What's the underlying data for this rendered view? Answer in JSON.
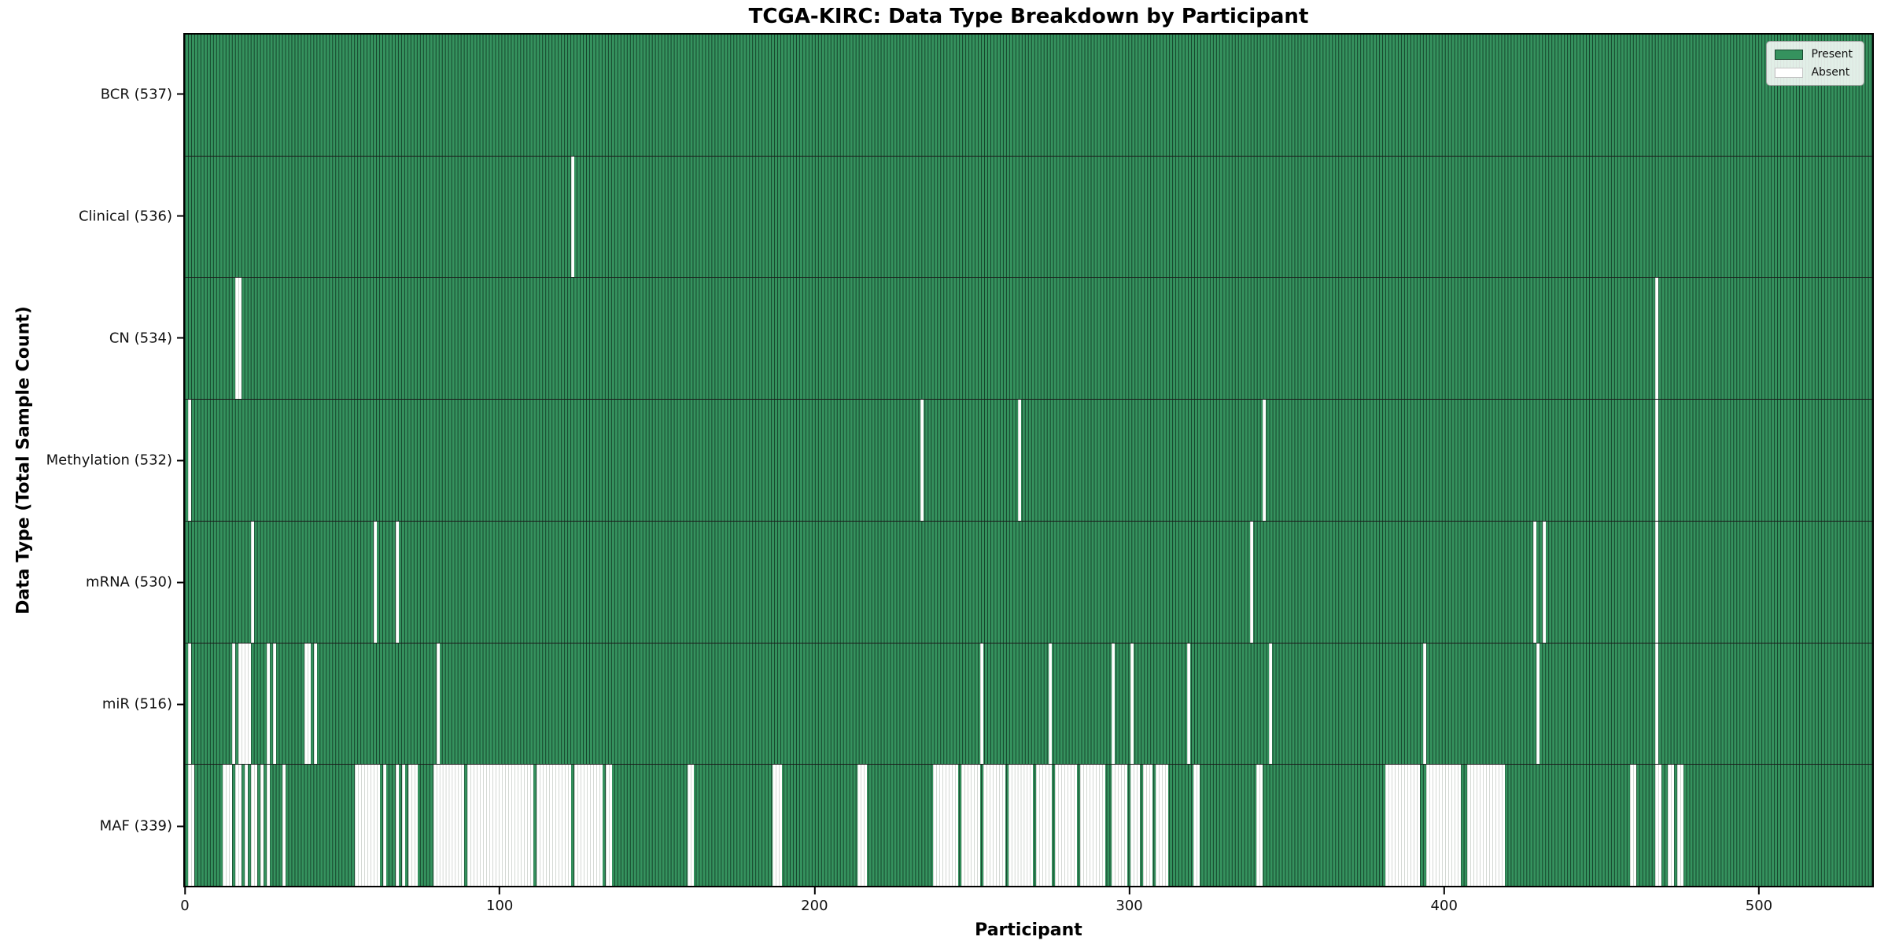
{
  "colors": {
    "present": "#35925e",
    "present_edge": "#16452c",
    "absent": "#ffffff",
    "absent_edge": "#d4d8d4",
    "divider": "#1a1a1a"
  },
  "chart_data": {
    "type": "heatmap",
    "title": "TCGA-KIRC: Data Type Breakdown by Participant",
    "xlabel": "Participant",
    "ylabel": "Data Type (Total Sample Count)",
    "x_ticks": [
      0,
      100,
      200,
      300,
      400,
      500
    ],
    "x_range": [
      0,
      537
    ],
    "n_participants": 537,
    "grid": false,
    "legend_position": "upper right",
    "legend": [
      {
        "label": "Present",
        "color": "#35925e"
      },
      {
        "label": "Absent",
        "color": "#ffffff"
      }
    ],
    "rows": [
      {
        "label": "BCR (537)",
        "data_type": "BCR",
        "present_count": 537,
        "absent_ranges": []
      },
      {
        "label": "Clinical (536)",
        "data_type": "Clinical",
        "present_count": 536,
        "absent_ranges": [
          [
            123,
            123
          ]
        ]
      },
      {
        "label": "CN (534)",
        "data_type": "CN",
        "present_count": 534,
        "absent_ranges": [
          [
            16,
            17
          ],
          [
            468,
            468
          ]
        ]
      },
      {
        "label": "Methylation (532)",
        "data_type": "Methylation",
        "present_count": 532,
        "absent_ranges": [
          [
            1,
            1
          ],
          [
            234,
            234
          ],
          [
            265,
            265
          ],
          [
            343,
            343
          ],
          [
            468,
            468
          ]
        ]
      },
      {
        "label": "mRNA (530)",
        "data_type": "mRNA",
        "present_count": 530,
        "absent_ranges": [
          [
            21,
            21
          ],
          [
            60,
            60
          ],
          [
            67,
            67
          ],
          [
            339,
            339
          ],
          [
            429,
            429
          ],
          [
            432,
            432
          ],
          [
            468,
            468
          ]
        ]
      },
      {
        "label": "miR (516)",
        "data_type": "miR",
        "present_count": 516,
        "absent_ranges": [
          [
            1,
            1
          ],
          [
            15,
            15
          ],
          [
            17,
            20
          ],
          [
            26,
            26
          ],
          [
            28,
            28
          ],
          [
            38,
            39
          ],
          [
            41,
            41
          ],
          [
            80,
            80
          ],
          [
            253,
            253
          ],
          [
            275,
            275
          ],
          [
            295,
            295
          ],
          [
            301,
            301
          ],
          [
            319,
            319
          ],
          [
            345,
            345
          ],
          [
            394,
            394
          ],
          [
            430,
            430
          ],
          [
            468,
            468
          ]
        ]
      },
      {
        "label": "MAF (339)",
        "data_type": "MAF",
        "present_count": 339,
        "absent_ranges": [
          [
            1,
            2
          ],
          [
            12,
            14
          ],
          [
            16,
            17
          ],
          [
            19,
            19
          ],
          [
            21,
            22
          ],
          [
            24,
            24
          ],
          [
            26,
            26
          ],
          [
            31,
            31
          ],
          [
            54,
            61
          ],
          [
            63,
            63
          ],
          [
            67,
            67
          ],
          [
            69,
            69
          ],
          [
            71,
            73
          ],
          [
            79,
            88
          ],
          [
            90,
            110
          ],
          [
            112,
            122
          ],
          [
            124,
            132
          ],
          [
            134,
            135
          ],
          [
            160,
            161
          ],
          [
            187,
            189
          ],
          [
            214,
            216
          ],
          [
            238,
            245
          ],
          [
            247,
            252
          ],
          [
            254,
            260
          ],
          [
            262,
            269
          ],
          [
            271,
            275
          ],
          [
            277,
            283
          ],
          [
            285,
            292
          ],
          [
            295,
            299
          ],
          [
            301,
            303
          ],
          [
            305,
            307
          ],
          [
            309,
            312
          ],
          [
            321,
            322
          ],
          [
            341,
            342
          ],
          [
            382,
            392
          ],
          [
            395,
            405
          ],
          [
            408,
            419
          ],
          [
            460,
            461
          ],
          [
            468,
            469
          ],
          [
            472,
            473
          ],
          [
            475,
            476
          ]
        ]
      }
    ]
  }
}
